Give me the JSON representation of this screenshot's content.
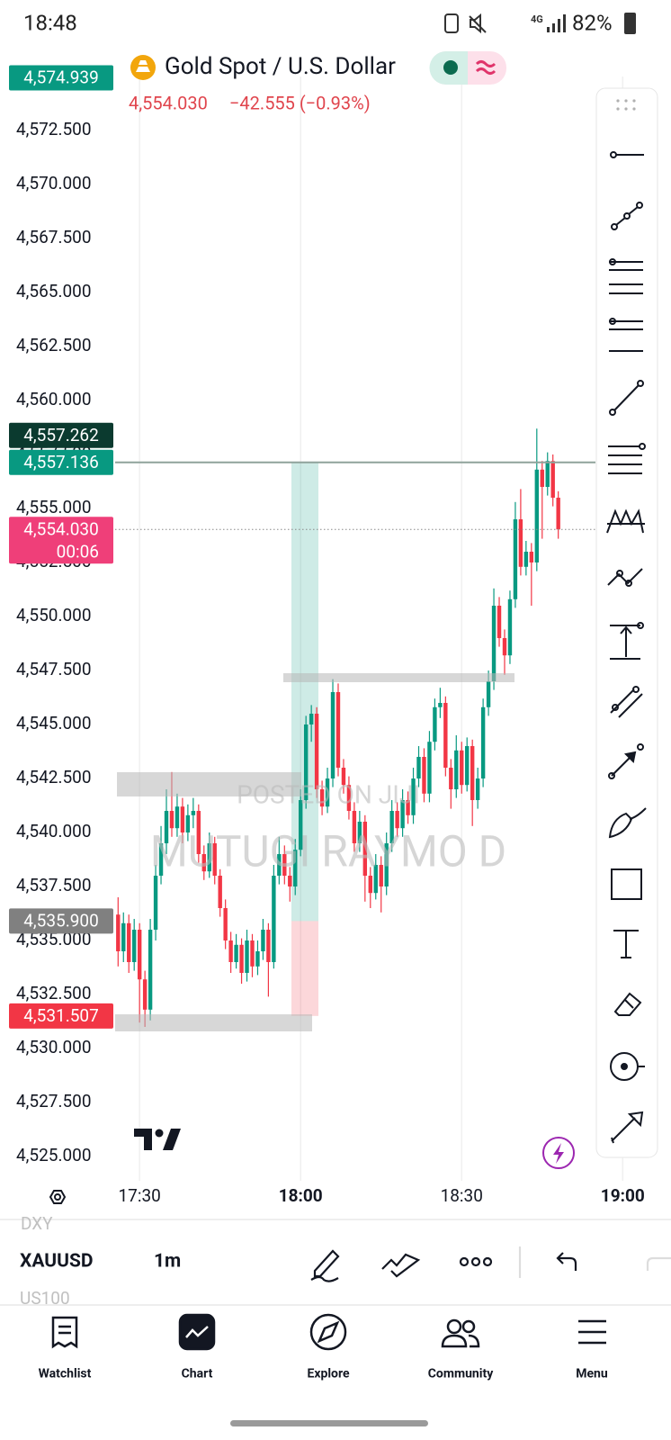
{
  "status_bar": {
    "time": "18:48",
    "network": "4G",
    "battery": "82%"
  },
  "header": {
    "symbol": "Gold Spot / U.S. Dollar",
    "price": "4,554.030",
    "change": "−42.555 (−0.93%)"
  },
  "watermark": [
    "POSTED ON JIJI",
    "MUTUGI RAYMO D"
  ],
  "chart_data": {
    "type": "candlestick",
    "x": [
      "17:26",
      "17:27",
      "17:28",
      "17:29",
      "17:30",
      "17:31",
      "17:32",
      "17:33",
      "17:34",
      "17:35",
      "17:36",
      "17:37",
      "17:38",
      "17:39",
      "17:40",
      "17:41",
      "17:42",
      "17:43",
      "17:44",
      "17:45",
      "17:46",
      "17:47",
      "17:48",
      "17:49",
      "17:50",
      "17:51",
      "17:52",
      "17:53",
      "17:54",
      "17:55",
      "17:56",
      "17:57",
      "17:58",
      "17:59",
      "18:00",
      "18:01",
      "18:02",
      "18:03",
      "18:04",
      "18:05",
      "18:06",
      "18:07",
      "18:08",
      "18:09",
      "18:10",
      "18:11",
      "18:12",
      "18:13",
      "18:14",
      "18:15",
      "18:16",
      "18:17",
      "18:18",
      "18:19",
      "18:20",
      "18:21",
      "18:22",
      "18:23",
      "18:24",
      "18:25",
      "18:26",
      "18:27",
      "18:28",
      "18:29",
      "18:30",
      "18:31",
      "18:32",
      "18:33",
      "18:34",
      "18:35",
      "18:36",
      "18:37",
      "18:38",
      "18:39",
      "18:40",
      "18:41",
      "18:42",
      "18:43",
      "18:44",
      "18:45",
      "18:46",
      "18:47",
      "18:48"
    ],
    "ohlc": [
      [
        4536.2,
        4537.0,
        4533.8,
        4534.5
      ],
      [
        4534.5,
        4536.3,
        4534.0,
        4535.8
      ],
      [
        4535.8,
        4536.2,
        4533.5,
        4534.0
      ],
      [
        4534.0,
        4536.0,
        4533.6,
        4535.5
      ],
      [
        4535.5,
        4535.8,
        4531.2,
        4533.2
      ],
      [
        4533.2,
        4533.6,
        4531.0,
        4531.8
      ],
      [
        4531.8,
        4536.0,
        4531.3,
        4535.5
      ],
      [
        4535.5,
        4538.5,
        4535.0,
        4538.0
      ],
      [
        4538.0,
        4540.3,
        4537.6,
        4539.5
      ],
      [
        4539.5,
        4542.0,
        4539.0,
        4541.0
      ],
      [
        4541.0,
        4542.8,
        4539.8,
        4540.2
      ],
      [
        4540.2,
        4541.8,
        4539.8,
        4541.2
      ],
      [
        4541.2,
        4541.6,
        4539.5,
        4540.0
      ],
      [
        4540.0,
        4541.3,
        4539.6,
        4540.8
      ],
      [
        4540.8,
        4541.6,
        4540.2,
        4541.0
      ],
      [
        4541.0,
        4541.3,
        4538.6,
        4539.0
      ],
      [
        4539.0,
        4539.4,
        4537.8,
        4538.2
      ],
      [
        4538.2,
        4540.0,
        4537.9,
        4539.5
      ],
      [
        4539.5,
        4539.8,
        4537.6,
        4538.0
      ],
      [
        4538.0,
        4538.3,
        4536.1,
        4536.5
      ],
      [
        4536.5,
        4536.9,
        4534.6,
        4535.0
      ],
      [
        4535.0,
        4535.4,
        4533.5,
        4534.0
      ],
      [
        4534.0,
        4535.3,
        4533.7,
        4534.8
      ],
      [
        4534.8,
        4535.1,
        4533.0,
        4533.5
      ],
      [
        4533.5,
        4535.5,
        4533.1,
        4535.0
      ],
      [
        4535.0,
        4535.3,
        4533.3,
        4533.8
      ],
      [
        4533.8,
        4535.0,
        4533.4,
        4534.5
      ],
      [
        4534.5,
        4536.0,
        4534.1,
        4535.5
      ],
      [
        4535.5,
        4535.8,
        4532.4,
        4534.0
      ],
      [
        4534.0,
        4538.5,
        4533.7,
        4538.0
      ],
      [
        4538.0,
        4539.8,
        4537.6,
        4539.0
      ],
      [
        4539.0,
        4539.4,
        4537.6,
        4538.0
      ],
      [
        4538.0,
        4538.4,
        4536.8,
        4537.5
      ],
      [
        4537.5,
        4539.7,
        4537.1,
        4539.2
      ],
      [
        4539.2,
        4542.0,
        4538.9,
        4541.5
      ],
      [
        4541.5,
        4545.4,
        4541.1,
        4545.0
      ],
      [
        4545.0,
        4545.9,
        4544.2,
        4545.5
      ],
      [
        4545.5,
        4545.8,
        4541.6,
        4542.0
      ],
      [
        4542.0,
        4542.4,
        4540.8,
        4541.2
      ],
      [
        4541.2,
        4543.0,
        4540.9,
        4542.5
      ],
      [
        4542.5,
        4547.1,
        4542.1,
        4546.5
      ],
      [
        4546.5,
        4546.9,
        4542.6,
        4543.0
      ],
      [
        4543.0,
        4543.4,
        4541.8,
        4542.2
      ],
      [
        4542.2,
        4542.6,
        4540.6,
        4541.0
      ],
      [
        4541.0,
        4541.4,
        4539.1,
        4539.5
      ],
      [
        4539.5,
        4541.0,
        4539.1,
        4540.5
      ],
      [
        4540.5,
        4540.8,
        4536.8,
        4538.0
      ],
      [
        4538.0,
        4538.4,
        4536.5,
        4537.2
      ],
      [
        4537.2,
        4539.0,
        4536.9,
        4538.5
      ],
      [
        4538.5,
        4538.9,
        4536.3,
        4537.5
      ],
      [
        4537.5,
        4540.0,
        4537.1,
        4539.5
      ],
      [
        4539.5,
        4541.5,
        4539.1,
        4541.0
      ],
      [
        4541.0,
        4541.4,
        4539.8,
        4540.2
      ],
      [
        4540.2,
        4542.0,
        4539.8,
        4541.5
      ],
      [
        4541.5,
        4541.9,
        4540.4,
        4540.8
      ],
      [
        4540.8,
        4543.0,
        4540.4,
        4542.5
      ],
      [
        4542.5,
        4544.0,
        4542.1,
        4543.5
      ],
      [
        4543.5,
        4543.9,
        4541.4,
        4541.8
      ],
      [
        4541.8,
        4544.7,
        4541.4,
        4544.2
      ],
      [
        4544.2,
        4546.2,
        4543.8,
        4545.8
      ],
      [
        4545.8,
        4546.7,
        4545.3,
        4546.0
      ],
      [
        4546.0,
        4546.3,
        4542.6,
        4543.0
      ],
      [
        4543.0,
        4543.4,
        4541.1,
        4542.0
      ],
      [
        4542.0,
        4544.5,
        4541.6,
        4543.8
      ],
      [
        4543.8,
        4544.2,
        4541.8,
        4542.2
      ],
      [
        4542.2,
        4544.4,
        4541.9,
        4544.0
      ],
      [
        4544.0,
        4544.3,
        4540.3,
        4541.5
      ],
      [
        4541.5,
        4543.0,
        4541.1,
        4542.5
      ],
      [
        4542.5,
        4546.2,
        4542.1,
        4545.8
      ],
      [
        4545.8,
        4547.5,
        4545.4,
        4547.0
      ],
      [
        4547.0,
        4551.3,
        4546.6,
        4550.5
      ],
      [
        4550.5,
        4550.9,
        4548.6,
        4549.0
      ],
      [
        4549.0,
        4549.4,
        4547.3,
        4548.2
      ],
      [
        4548.2,
        4551.2,
        4547.8,
        4550.8
      ],
      [
        4550.8,
        4555.3,
        4550.4,
        4554.5
      ],
      [
        4554.5,
        4555.9,
        4551.9,
        4552.3
      ],
      [
        4552.3,
        4553.5,
        4551.9,
        4553.0
      ],
      [
        4553.0,
        4553.4,
        4550.5,
        4552.5
      ],
      [
        4552.5,
        4558.7,
        4552.1,
        4556.8
      ],
      [
        4556.8,
        4557.2,
        4553.6,
        4556.0
      ],
      [
        4556.0,
        4557.6,
        4555.6,
        4557.2
      ],
      [
        4557.2,
        4557.5,
        4555.1,
        4555.5
      ],
      [
        4555.5,
        4555.8,
        4553.6,
        4554.03
      ]
    ],
    "up_color": "#089981",
    "down_color": "#f23645",
    "xlim": [
      "17:04",
      "19:09"
    ],
    "xticks": [
      "17:30",
      "18:00",
      "18:30",
      "19:00"
    ],
    "grid": true,
    "ylim": [
      4524,
      4575
    ],
    "yticks": [
      {
        "value": 4525,
        "label": "4,525.000"
      },
      {
        "value": 4527.5,
        "label": "4,527.500"
      },
      {
        "value": 4530,
        "label": "4,530.000"
      },
      {
        "value": 4532.5,
        "label": "4,532.500"
      },
      {
        "value": 4535,
        "label": "4,535.000"
      },
      {
        "value": 4537.5,
        "label": "4,537.500"
      },
      {
        "value": 4540,
        "label": "4,540.000"
      },
      {
        "value": 4542.5,
        "label": "4,542.500"
      },
      {
        "value": 4545,
        "label": "4,545.000"
      },
      {
        "value": 4547.5,
        "label": "4,547.500"
      },
      {
        "value": 4550,
        "label": "4,550.000"
      },
      {
        "value": 4552.5,
        "label": "4,552.500"
      },
      {
        "value": 4555,
        "label": "4,555.000"
      },
      {
        "value": 4557.5,
        "label": "4,557.500"
      },
      {
        "value": 4560,
        "label": "4,560.000"
      },
      {
        "value": 4562.5,
        "label": "4,562.500"
      },
      {
        "value": 4565,
        "label": "4,565.000"
      },
      {
        "value": 4567.5,
        "label": "4,567.500"
      },
      {
        "value": 4570,
        "label": "4,570.000"
      },
      {
        "value": 4572.5,
        "label": "4,572.500"
      }
    ],
    "price_labels": [
      {
        "value": 4574.939,
        "label": "4,574.939",
        "color": "#089981"
      },
      {
        "value": 4557.136,
        "label": "4,557.136",
        "color": "#089981"
      },
      {
        "value": 4557.262,
        "label": "4,557.262",
        "color": "#0b3a2f"
      },
      {
        "value": 4554.03,
        "label": "4,554.030",
        "countdown": "00:06",
        "color": "#ef3f79"
      },
      {
        "value": 4535.9,
        "label": "4,535.900",
        "color": "#808080"
      },
      {
        "value": 4531.507,
        "label": "4,531.507",
        "color": "#f23645"
      }
    ]
  },
  "toolbar": {
    "symbols": [
      "DXY",
      "XAUUSD",
      "US100"
    ],
    "interval": "1m"
  },
  "nav": [
    "Watchlist",
    "Chart",
    "Explore",
    "Community",
    "Menu"
  ]
}
